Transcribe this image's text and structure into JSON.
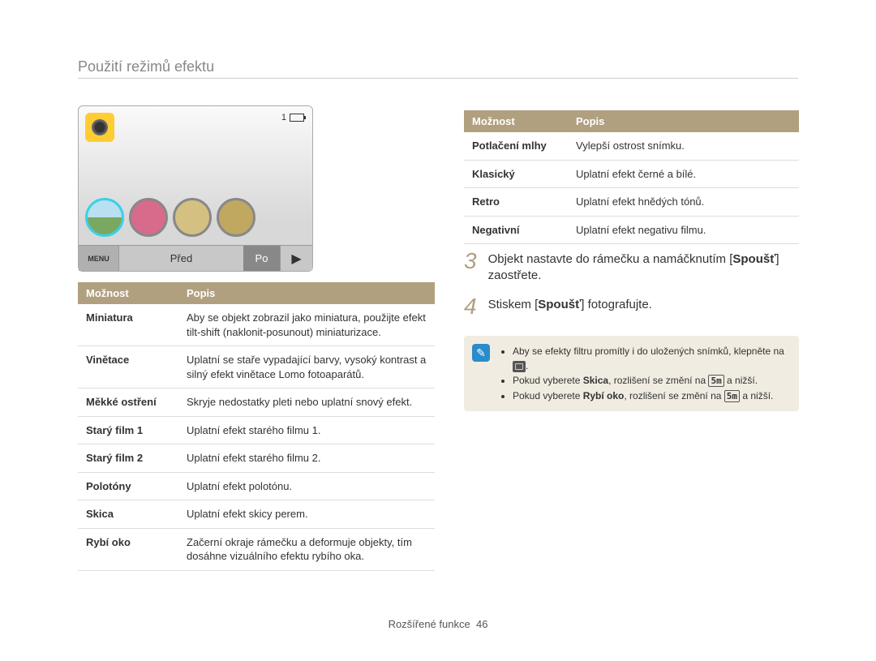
{
  "page": {
    "title": "Použití režimů efektu",
    "footer_section": "Rozšířené funkce",
    "footer_page": "46"
  },
  "preview": {
    "counter": "1",
    "menu_label": "MENU",
    "before_label": "Před",
    "after_label": "Po"
  },
  "table_left": {
    "header_option": "Možnost",
    "header_desc": "Popis",
    "rows": [
      {
        "opt": "Miniatura",
        "desc": "Aby se objekt zobrazil jako miniatura, použijte efekt tilt-shift (naklonit-posunout) miniaturizace."
      },
      {
        "opt": "Vinětace",
        "desc": "Uplatní se staře vypadající barvy, vysoký kontrast a silný efekt vinětace Lomo fotoaparátů."
      },
      {
        "opt": "Měkké ostření",
        "desc": "Skryje nedostatky pleti nebo uplatní snový efekt."
      },
      {
        "opt": "Starý film 1",
        "desc": "Uplatní efekt starého filmu 1."
      },
      {
        "opt": "Starý film 2",
        "desc": "Uplatní efekt starého filmu 2."
      },
      {
        "opt": "Polotóny",
        "desc": "Uplatní efekt polotónu."
      },
      {
        "opt": "Skica",
        "desc": "Uplatní efekt skicy perem."
      },
      {
        "opt": "Rybí oko",
        "desc": "Začerní okraje rámečku a deformuje objekty, tím dosáhne vizuálního efektu rybího oka."
      }
    ]
  },
  "table_right": {
    "header_option": "Možnost",
    "header_desc": "Popis",
    "rows": [
      {
        "opt": "Potlačení mlhy",
        "desc": "Vylepší ostrost snímku."
      },
      {
        "opt": "Klasický",
        "desc": "Uplatní efekt černé a bílé."
      },
      {
        "opt": "Retro",
        "desc": "Uplatní efekt hnědých tónů."
      },
      {
        "opt": "Negativní",
        "desc": "Uplatní efekt negativu filmu."
      }
    ]
  },
  "steps": {
    "s3_num": "3",
    "s3_pre": "Objekt nastavte do rámečku a namáčknutím [",
    "s3_bold": "Spoušť",
    "s3_post": "] zaostřete.",
    "s4_num": "4",
    "s4_pre": "Stiskem [",
    "s4_bold": "Spoušť",
    "s4_post": "] fotografujte."
  },
  "notes": {
    "n1_pre": "Aby se efekty filtru promítly i do uložených snímků, klepněte na ",
    "n1_post": ".",
    "n2_pre": "Pokud vyberete ",
    "n2_bold": "Skica",
    "n2_mid": ", rozlišení se změní na ",
    "n2_res": "5m",
    "n2_post": " a nižší.",
    "n3_pre": "Pokud vyberete ",
    "n3_bold": "Rybí oko",
    "n3_mid": ", rozlišení se změní na ",
    "n3_res": "5m",
    "n3_post": " a nižší."
  }
}
